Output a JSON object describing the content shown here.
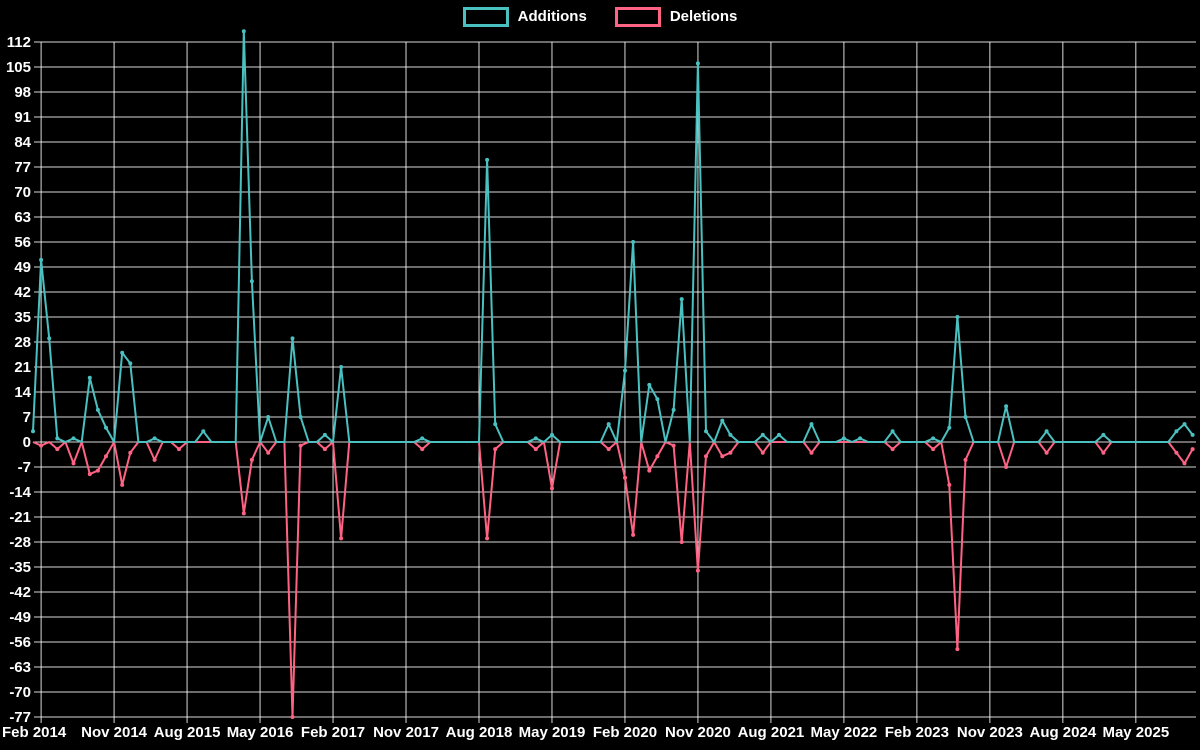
{
  "chart_data": {
    "type": "line",
    "title": "",
    "xlabel": "",
    "ylabel": "",
    "background": "#000000",
    "grid": true,
    "grid_color": "#ffffff",
    "tick_text_color": "#ffffff",
    "legend_position": "top-center",
    "ylim": [
      -77,
      112
    ],
    "y_tick_step": 7,
    "y_ticks": [
      112,
      105,
      98,
      91,
      84,
      77,
      70,
      63,
      56,
      49,
      42,
      35,
      28,
      21,
      14,
      7,
      0,
      -7,
      -14,
      -21,
      -28,
      -35,
      -42,
      -49,
      -56,
      -63,
      -70,
      -77
    ],
    "x_start": "2014-01",
    "x_end": "2025-12",
    "x_tick_every_months": 9,
    "x_tick_labels": [
      "Feb 2014",
      "Nov 2014",
      "Aug 2015",
      "May 2016",
      "Feb 2017",
      "Nov 2017",
      "Aug 2018",
      "May 2019",
      "Feb 2020",
      "Nov 2020",
      "Aug 2021",
      "May 2022",
      "Feb 2023",
      "Nov 2023",
      "Aug 2024",
      "May 2025"
    ],
    "series": [
      {
        "name": "Deletions",
        "color": "#ff6384",
        "baseline": 0,
        "points": {
          "2014-02": -1,
          "2014-04": -2,
          "2014-06": -6,
          "2014-08": -9,
          "2014-09": -8,
          "2014-10": -4,
          "2014-12": -12,
          "2015-01": -3,
          "2015-04": -5,
          "2015-07": -2,
          "2016-03": -20,
          "2016-04": -5,
          "2016-06": -3,
          "2016-09": -77,
          "2016-10": -1,
          "2017-01": -2,
          "2017-03": -27,
          "2018-01": -2,
          "2018-09": -27,
          "2018-10": -2,
          "2019-03": -2,
          "2019-05": -13,
          "2019-12": -2,
          "2020-02": -10,
          "2020-03": -26,
          "2020-05": -8,
          "2020-06": -4,
          "2020-08": -1,
          "2020-09": -28,
          "2020-11": -36,
          "2020-12": -4,
          "2021-02": -4,
          "2021-03": -3,
          "2021-07": -3,
          "2022-01": -3,
          "2022-11": -2,
          "2023-04": -2,
          "2023-06": -12,
          "2023-07": -58,
          "2023-08": -5,
          "2024-01": -7,
          "2024-06": -3,
          "2025-01": -3,
          "2025-10": -3,
          "2025-11": -6,
          "2025-12": -2
        }
      },
      {
        "name": "Additions",
        "color": "#4bc0c0",
        "baseline": 0,
        "points": {
          "2014-01": 3,
          "2014-02": 51,
          "2014-03": 29,
          "2014-04": 1,
          "2014-06": 1,
          "2014-08": 18,
          "2014-09": 9,
          "2014-10": 4,
          "2014-12": 25,
          "2015-01": 22,
          "2015-04": 1,
          "2015-10": 3,
          "2016-03": 115,
          "2016-04": 45,
          "2016-06": 7,
          "2016-09": 29,
          "2016-10": 7,
          "2017-01": 2,
          "2017-03": 21,
          "2018-01": 1,
          "2018-09": 79,
          "2018-10": 5,
          "2019-03": 1,
          "2019-05": 2,
          "2019-12": 5,
          "2020-02": 20,
          "2020-03": 56,
          "2020-05": 16,
          "2020-06": 12,
          "2020-08": 9,
          "2020-09": 40,
          "2020-11": 106,
          "2020-12": 3,
          "2021-02": 6,
          "2021-03": 2,
          "2021-07": 2,
          "2021-09": 2,
          "2022-01": 5,
          "2022-05": 1,
          "2022-07": 1,
          "2022-11": 3,
          "2023-04": 1,
          "2023-06": 4,
          "2023-07": 35,
          "2023-08": 7,
          "2024-01": 10,
          "2024-06": 3,
          "2025-01": 2,
          "2025-10": 3,
          "2025-11": 5,
          "2025-12": 2
        }
      }
    ]
  }
}
